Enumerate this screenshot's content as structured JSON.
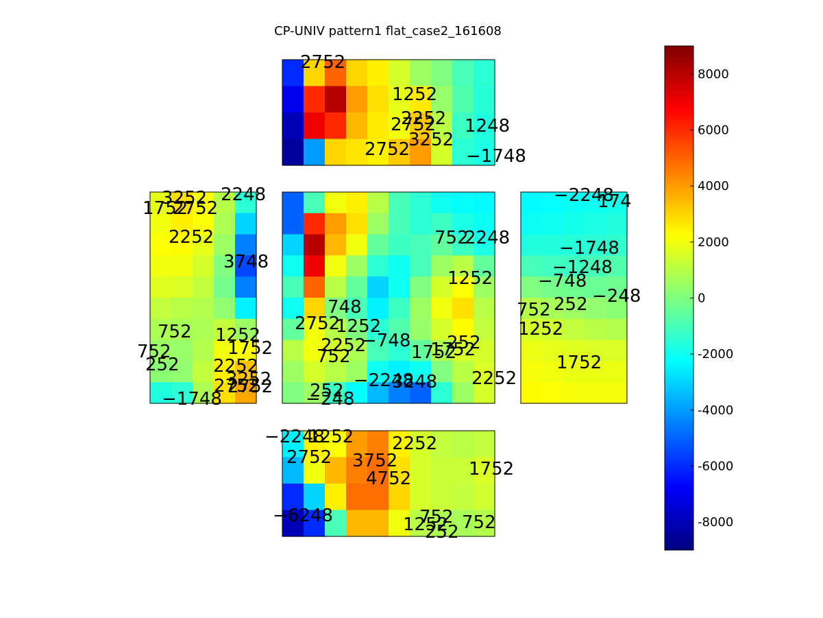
{
  "chart_data": {
    "type": "heatmap",
    "title": "CP-UNIV pattern1 flat_case2_161608",
    "colormap": "jet",
    "clim": [
      -9000,
      9000
    ],
    "colorbar_ticks": [
      "8000",
      "6000",
      "4000",
      "2000",
      "0",
      "-2000",
      "-4000",
      "-6000",
      "-8000"
    ],
    "colorbar_tick_values": [
      8000,
      6000,
      4000,
      2000,
      0,
      -2000,
      -4000,
      -6000,
      -8000
    ],
    "panels": [
      {
        "name": "top",
        "values": [
          [
            -6000,
            3000,
            5000,
            3000,
            2500,
            1500,
            500,
            0,
            -1000,
            -1500
          ],
          [
            -7000,
            6000,
            8000,
            4000,
            2800,
            1800,
            2600,
            400,
            -800,
            -1600
          ],
          [
            -8000,
            7000,
            6000,
            3500,
            2600,
            2000,
            3200,
            1000,
            -1200,
            -1700
          ],
          [
            -8500,
            -4000,
            3000,
            2700,
            2500,
            3200,
            4000,
            1500,
            -1500,
            -1800
          ]
        ],
        "labels": [
          "2752",
          "1252",
          "2252",
          "2752",
          "3252",
          "1248",
          "2752",
          "−1748"
        ]
      },
      {
        "name": "left",
        "values": [
          [
            1800,
            2800,
            2200,
            1000,
            -1500
          ],
          [
            2000,
            2500,
            2200,
            800,
            -3000
          ],
          [
            2200,
            2300,
            1800,
            500,
            -4500
          ],
          [
            2000,
            2000,
            1500,
            0,
            -5500
          ],
          [
            1700,
            1600,
            1200,
            -200,
            -4500
          ],
          [
            1200,
            1000,
            900,
            300,
            -2500
          ],
          [
            800,
            700,
            800,
            1200,
            500
          ],
          [
            500,
            400,
            900,
            2000,
            2200
          ],
          [
            200,
            300,
            1200,
            2500,
            3300
          ],
          [
            -1700,
            -1500,
            800,
            2800,
            3800
          ]
        ],
        "labels": [
          "1752",
          "2752",
          "3252",
          "2248",
          "2252",
          "3748",
          "752",
          "1252",
          "752",
          "1752",
          "252",
          "2252",
          "3252",
          "2752",
          "2752",
          "−1748"
        ]
      },
      {
        "name": "center",
        "values": [
          [
            -5000,
            -1000,
            2000,
            2500,
            1000,
            -1000,
            -1500,
            -2000,
            -2200,
            -2300
          ],
          [
            -5000,
            6000,
            4000,
            2800,
            500,
            -1000,
            -1500,
            -1200,
            -1800,
            -2100
          ],
          [
            -3000,
            8000,
            3500,
            2000,
            -500,
            -1200,
            -1000,
            -500,
            -1200,
            -1800
          ],
          [
            -2000,
            7000,
            2000,
            500,
            -1500,
            -2000,
            -1000,
            500,
            1000,
            -500
          ],
          [
            -1000,
            5000,
            1000,
            -500,
            -3000,
            -2000,
            0,
            1500,
            2200,
            500
          ],
          [
            -2000,
            3000,
            0,
            -1000,
            -2500,
            -1200,
            500,
            2000,
            2800,
            1000
          ],
          [
            -500,
            2000,
            1000,
            0,
            -1500,
            -800,
            400,
            1500,
            2300,
            1200
          ],
          [
            1000,
            2000,
            1500,
            800,
            -1000,
            -1500,
            -500,
            800,
            1500,
            1500
          ],
          [
            500,
            1500,
            1000,
            500,
            -2000,
            -2500,
            -2000,
            0,
            1000,
            1600
          ],
          [
            0,
            500,
            -1200,
            -2200,
            -3500,
            -4500,
            -5000,
            -1500,
            500,
            1500
          ]
        ],
        "labels": [
          "752",
          "2248",
          "1252",
          "748",
          "1252",
          "2252",
          "−748",
          "252",
          "1752",
          "2252",
          "752",
          "−2248",
          "252",
          "1752",
          "3248",
          "2752",
          "−248"
        ]
      },
      {
        "name": "right",
        "values": [
          [
            -2300,
            -2200,
            -2100,
            -2000,
            -1900
          ],
          [
            -2100,
            -2000,
            -1900,
            -1800,
            -1700
          ],
          [
            -1700,
            -1700,
            -1600,
            -1500,
            -1400
          ],
          [
            -1000,
            -1100,
            -1200,
            -1000,
            -800
          ],
          [
            0,
            -200,
            -300,
            -400,
            -300
          ],
          [
            900,
            700,
            500,
            300,
            200
          ],
          [
            1500,
            1400,
            1200,
            1000,
            900
          ],
          [
            1900,
            1800,
            1700,
            1600,
            1600
          ],
          [
            2100,
            2000,
            1900,
            1900,
            1900
          ],
          [
            2300,
            2200,
            2100,
            2100,
            2100
          ]
        ],
        "labels": [
          "−2248",
          "174",
          "−1748",
          "−1248",
          "−748",
          "−248",
          "752",
          "252",
          "1252",
          "1752"
        ]
      },
      {
        "name": "bottom",
        "values": [
          [
            -2500,
            2500,
            2200,
            4000,
            4500,
            2500,
            1500,
            1200,
            1000,
            1200
          ],
          [
            -3500,
            2000,
            3500,
            4500,
            4800,
            2800,
            1500,
            1300,
            1300,
            1600
          ],
          [
            -6000,
            -3000,
            2500,
            4800,
            4800,
            3000,
            1500,
            1300,
            1200,
            1400
          ],
          [
            -8000,
            -6000,
            -1000,
            3500,
            3500,
            2000,
            1000,
            800,
            700,
            900
          ]
        ],
        "labels": [
          "−2248",
          "1252",
          "2752",
          "3752",
          "2252",
          "1752",
          "4752",
          "−6248",
          "752",
          "1252",
          "252",
          "752"
        ]
      }
    ]
  }
}
